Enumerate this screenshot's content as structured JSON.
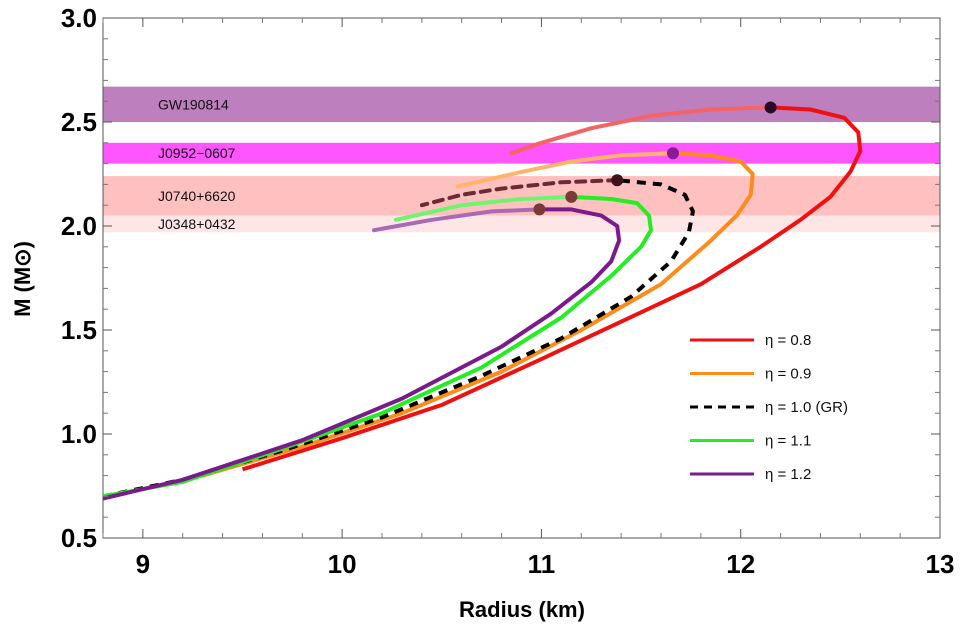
{
  "chart_data": {
    "type": "line",
    "title": "",
    "xlabel": "Radius (km)",
    "ylabel": "M (M⊙)",
    "xlim": [
      8.8,
      13.0
    ],
    "ylim": [
      0.5,
      3.0
    ],
    "xticks": [
      9,
      10,
      11,
      12,
      13
    ],
    "yticks": [
      0.5,
      1.0,
      1.5,
      2.0,
      2.5,
      3.0
    ],
    "xtick_labels": [
      "9",
      "10",
      "11",
      "12",
      "13"
    ],
    "ytick_labels": [
      "0.5",
      "1.0",
      "1.5",
      "2.0",
      "2.5",
      "3.0"
    ],
    "legend_position": "bottom-right",
    "bands": [
      {
        "name": "GW190814",
        "ymin": 2.5,
        "ymax": 2.67,
        "color": "#be7fbe"
      },
      {
        "name": "J0952−0607",
        "ymin": 2.3,
        "ymax": 2.4,
        "color": "#ff55ff"
      },
      {
        "name": "J0740+6620",
        "ymin": 2.05,
        "ymax": 2.24,
        "color": "#ffc0c0"
      },
      {
        "name": "J0348+0432",
        "ymin": 1.97,
        "ymax": 2.05,
        "color": "#ffe6e6"
      }
    ],
    "series": [
      {
        "name": "η = 0.8",
        "color": "#ee1111",
        "dashed": false,
        "stable": [
          [
            9.5,
            0.83
          ],
          [
            10.0,
            0.98
          ],
          [
            10.5,
            1.14
          ],
          [
            11.0,
            1.36
          ],
          [
            11.4,
            1.54
          ],
          [
            11.8,
            1.72
          ],
          [
            12.1,
            1.9
          ],
          [
            12.3,
            2.03
          ],
          [
            12.45,
            2.14
          ],
          [
            12.55,
            2.26
          ],
          [
            12.6,
            2.36
          ],
          [
            12.59,
            2.45
          ],
          [
            12.52,
            2.52
          ],
          [
            12.35,
            2.56
          ],
          [
            12.15,
            2.57
          ]
        ],
        "unstable": [
          [
            12.15,
            2.57
          ],
          [
            11.85,
            2.56
          ],
          [
            11.55,
            2.53
          ],
          [
            11.25,
            2.47
          ],
          [
            11.0,
            2.4
          ],
          [
            10.85,
            2.35
          ]
        ],
        "max": [
          12.15,
          2.57
        ]
      },
      {
        "name": "η = 0.9",
        "color": "#ff8c1a",
        "dashed": false,
        "stable": [
          [
            9.3,
            0.8
          ],
          [
            9.8,
            0.94
          ],
          [
            10.3,
            1.1
          ],
          [
            10.8,
            1.3
          ],
          [
            11.2,
            1.5
          ],
          [
            11.6,
            1.72
          ],
          [
            11.85,
            1.93
          ],
          [
            11.98,
            2.05
          ],
          [
            12.05,
            2.15
          ],
          [
            12.06,
            2.25
          ],
          [
            12.0,
            2.31
          ],
          [
            11.85,
            2.34
          ],
          [
            11.66,
            2.35
          ]
        ],
        "unstable": [
          [
            11.66,
            2.35
          ],
          [
            11.4,
            2.34
          ],
          [
            11.15,
            2.31
          ],
          [
            10.9,
            2.26
          ],
          [
            10.58,
            2.19
          ]
        ],
        "max": [
          11.66,
          2.35
        ]
      },
      {
        "name": "η = 1.0 (GR)",
        "color": "#000000",
        "dashed": true,
        "stable": [
          [
            8.8,
            0.7
          ],
          [
            9.2,
            0.78
          ],
          [
            9.7,
            0.92
          ],
          [
            10.2,
            1.08
          ],
          [
            10.7,
            1.28
          ],
          [
            11.1,
            1.46
          ],
          [
            11.45,
            1.66
          ],
          [
            11.65,
            1.83
          ],
          [
            11.74,
            1.97
          ],
          [
            11.76,
            2.07
          ],
          [
            11.72,
            2.15
          ],
          [
            11.6,
            2.2
          ],
          [
            11.38,
            2.22
          ]
        ],
        "unstable": [
          [
            11.38,
            2.22
          ],
          [
            11.1,
            2.21
          ],
          [
            10.8,
            2.18
          ],
          [
            10.6,
            2.15
          ],
          [
            10.4,
            2.1
          ]
        ],
        "max": [
          11.38,
          2.22
        ]
      },
      {
        "name": "η = 1.1",
        "color": "#22ee22",
        "dashed": false,
        "stable": [
          [
            8.8,
            0.7
          ],
          [
            9.2,
            0.77
          ],
          [
            9.7,
            0.93
          ],
          [
            10.2,
            1.1
          ],
          [
            10.7,
            1.32
          ],
          [
            11.1,
            1.56
          ],
          [
            11.35,
            1.76
          ],
          [
            11.5,
            1.9
          ],
          [
            11.55,
            1.98
          ],
          [
            11.54,
            2.05
          ],
          [
            11.48,
            2.11
          ],
          [
            11.35,
            2.13
          ],
          [
            11.15,
            2.14
          ]
        ],
        "unstable": [
          [
            11.15,
            2.14
          ],
          [
            10.9,
            2.13
          ],
          [
            10.6,
            2.1
          ],
          [
            10.27,
            2.03
          ]
        ],
        "max": [
          11.15,
          2.14
        ]
      },
      {
        "name": "η = 1.2",
        "color": "#7a1a8c",
        "dashed": false,
        "stable": [
          [
            8.8,
            0.69
          ],
          [
            9.2,
            0.78
          ],
          [
            9.8,
            0.97
          ],
          [
            10.3,
            1.17
          ],
          [
            10.8,
            1.42
          ],
          [
            11.05,
            1.58
          ],
          [
            11.25,
            1.73
          ],
          [
            11.35,
            1.83
          ],
          [
            11.39,
            1.93
          ],
          [
            11.38,
            2.0
          ],
          [
            11.3,
            2.05
          ],
          [
            11.15,
            2.08
          ],
          [
            10.99,
            2.08
          ]
        ],
        "unstable": [
          [
            10.99,
            2.08
          ],
          [
            10.75,
            2.07
          ],
          [
            10.45,
            2.03
          ],
          [
            10.16,
            1.98
          ]
        ],
        "max": [
          10.99,
          2.08
        ]
      }
    ]
  }
}
